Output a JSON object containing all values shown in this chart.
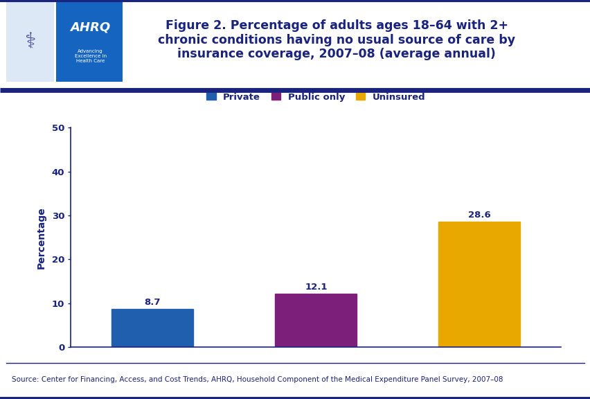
{
  "title": "Figure 2. Percentage of adults ages 18–64 with 2+\nchronic conditions having no usual source of care by\ninsurance coverage, 2007–08 (average annual)",
  "categories": [
    "Private",
    "Public only",
    "Uninsured"
  ],
  "values": [
    8.7,
    12.1,
    28.6
  ],
  "bar_colors": [
    "#1f5fad",
    "#7b1f7b",
    "#e8a800"
  ],
  "ylabel": "Percentage",
  "ylim": [
    0,
    50
  ],
  "yticks": [
    0,
    10,
    20,
    30,
    40,
    50
  ],
  "source_text": "Source: Center for Financing, Access, and Cost Trends, AHRQ, Household Component of the Medical Expenditure Panel Survey, 2007–08",
  "title_color": "#1a237e",
  "ylabel_color": "#1a237e",
  "tick_color": "#1a237e",
  "bar_label_color": "#1a237e",
  "legend_label_color": "#1a237e",
  "source_color": "#1a237e",
  "background_color": "#ffffff",
  "border_color": "#1a237e",
  "title_fontsize": 12.5,
  "ylabel_fontsize": 10,
  "bar_label_fontsize": 9.5,
  "legend_fontsize": 9.5,
  "source_fontsize": 7.5
}
